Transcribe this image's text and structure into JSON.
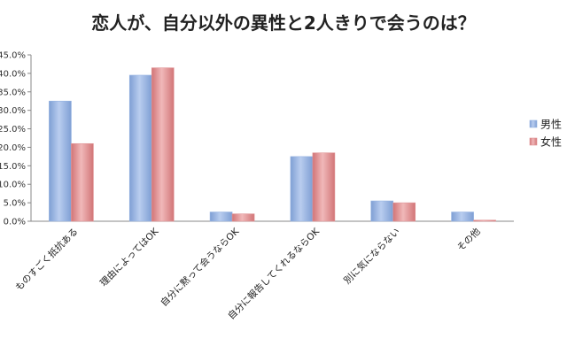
{
  "chart_data": {
    "type": "bar",
    "title": "恋人が、自分以外の異性と2人きりで会うのは？",
    "categories": [
      "ものすごく抵抗ある",
      "理由によってはOK",
      "自分に黙って会うならOK",
      "自分に報告してくれるならOK",
      "別に気にならない",
      "その他"
    ],
    "series": [
      {
        "name": "男性",
        "values": [
          32.5,
          39.5,
          2.5,
          17.5,
          5.5,
          2.5
        ],
        "color": "#95b3e2"
      },
      {
        "name": "女性",
        "values": [
          21.0,
          41.5,
          2.0,
          18.5,
          5.0,
          0.3
        ],
        "color": "#e09496"
      }
    ],
    "ylim": [
      0,
      45
    ],
    "yticks": [
      "0.0%",
      "5.0%",
      "10.0%",
      "15.0%",
      "20.0%",
      "25.0%",
      "30.0%",
      "35.0%",
      "40.0%",
      "45.0%"
    ],
    "grid": false,
    "legend_position": "right"
  }
}
